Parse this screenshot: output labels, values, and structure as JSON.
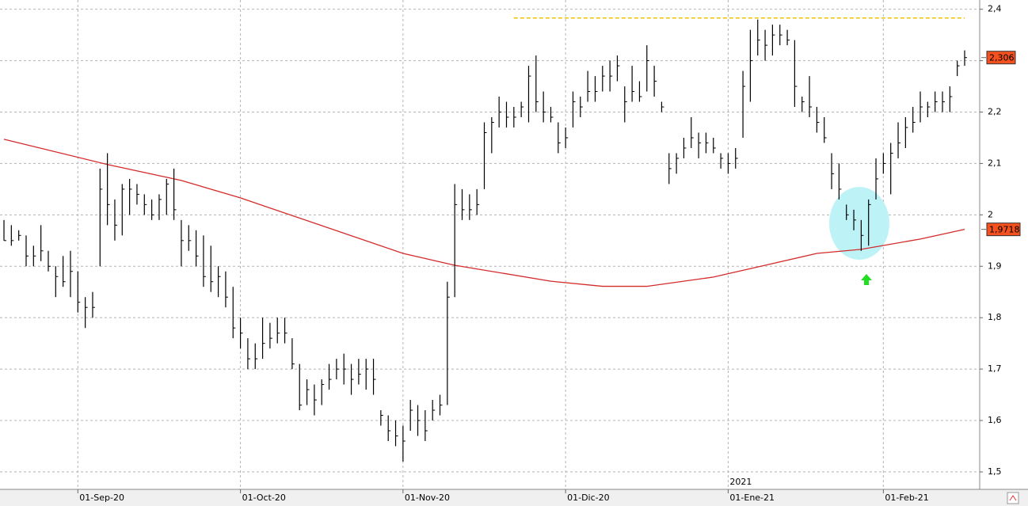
{
  "chart_data": {
    "type": "ohlc",
    "categories": [
      null,
      null,
      null,
      null,
      null,
      null,
      null,
      null,
      null,
      null,
      "01-Sep-20",
      null,
      null,
      null,
      null,
      null,
      null,
      null,
      null,
      null,
      null,
      null,
      null,
      null,
      null,
      null,
      null,
      null,
      null,
      null,
      null,
      null,
      "01-Oct-20",
      null,
      null,
      null,
      null,
      null,
      null,
      null,
      null,
      null,
      null,
      null,
      null,
      null,
      null,
      null,
      null,
      null,
      null,
      null,
      null,
      null,
      "01-Nov-20",
      null,
      null,
      null,
      null,
      null,
      null,
      null,
      null,
      null,
      null,
      null,
      null,
      null,
      null,
      null,
      null,
      null,
      null,
      null,
      null,
      null,
      "01-Dic-20",
      null,
      null,
      null,
      null,
      null,
      null,
      null,
      null,
      null,
      null,
      null,
      null,
      null,
      null,
      null,
      null,
      null,
      null,
      null,
      null,
      null,
      "01-Ene-21",
      null,
      null,
      null,
      null,
      null,
      null,
      null,
      null,
      null,
      null,
      null,
      null,
      null,
      null,
      null,
      null,
      null,
      null,
      null,
      null,
      "01-Feb-21",
      null,
      null,
      null,
      null,
      null,
      null,
      null,
      null,
      null,
      null,
      null
    ],
    "year_label": "2021",
    "high": [
      1.99,
      1.98,
      1.97,
      1.96,
      1.94,
      1.98,
      1.93,
      1.9,
      1.92,
      1.93,
      1.89,
      1.84,
      1.85,
      2.09,
      2.12,
      2.03,
      2.06,
      2.07,
      2.06,
      2.04,
      2.03,
      2.04,
      2.07,
      2.09,
      1.99,
      1.98,
      1.97,
      1.96,
      1.94,
      1.9,
      1.89,
      1.86,
      1.8,
      1.76,
      1.75,
      1.8,
      1.79,
      1.8,
      1.8,
      1.76,
      1.71,
      1.68,
      1.67,
      1.68,
      1.71,
      1.72,
      1.73,
      1.71,
      1.72,
      1.72,
      1.72,
      1.62,
      1.61,
      1.6,
      1.59,
      1.64,
      1.63,
      1.62,
      1.64,
      1.65,
      1.87,
      2.06,
      2.05,
      2.04,
      2.05,
      2.18,
      2.19,
      2.23,
      2.22,
      2.21,
      2.22,
      2.29,
      2.31,
      2.24,
      2.21,
      2.18,
      2.17,
      2.24,
      2.23,
      2.28,
      2.27,
      2.29,
      2.3,
      2.31,
      2.25,
      2.29,
      2.26,
      2.33,
      2.29,
      2.22,
      2.12,
      2.12,
      2.15,
      2.19,
      2.16,
      2.16,
      2.15,
      2.12,
      2.12,
      2.13,
      2.28,
      2.36,
      2.38,
      2.36,
      2.37,
      2.37,
      2.36,
      2.34,
      2.23,
      2.27,
      2.21,
      2.19,
      2.12,
      2.1,
      2.02,
      2.01,
      1.99,
      2.03,
      2.11,
      2.12,
      2.14,
      2.18,
      2.19,
      2.21,
      2.24,
      2.22,
      2.24,
      2.24,
      2.25,
      2.3,
      2.32
    ],
    "low": [
      1.95,
      1.94,
      1.95,
      1.9,
      1.9,
      1.91,
      1.89,
      1.84,
      1.86,
      1.84,
      1.81,
      1.78,
      1.8,
      1.9,
      1.98,
      1.95,
      1.96,
      2.0,
      2.02,
      2.0,
      1.99,
      1.99,
      2.0,
      1.99,
      1.9,
      1.93,
      1.9,
      1.86,
      1.85,
      1.84,
      1.82,
      1.76,
      1.74,
      1.7,
      1.7,
      1.72,
      1.74,
      1.75,
      1.75,
      1.7,
      1.62,
      1.63,
      1.61,
      1.63,
      1.66,
      1.68,
      1.67,
      1.65,
      1.67,
      1.66,
      1.65,
      1.59,
      1.56,
      1.55,
      1.52,
      1.58,
      1.57,
      1.56,
      1.6,
      1.61,
      1.63,
      1.84,
      1.99,
      1.99,
      2.0,
      2.05,
      2.12,
      2.17,
      2.17,
      2.17,
      2.19,
      2.18,
      2.2,
      2.18,
      2.18,
      2.12,
      2.13,
      2.17,
      2.19,
      2.22,
      2.22,
      2.24,
      2.24,
      2.26,
      2.18,
      2.22,
      2.22,
      2.24,
      2.23,
      2.2,
      2.06,
      2.08,
      2.11,
      2.13,
      2.11,
      2.12,
      2.12,
      2.09,
      2.08,
      2.09,
      2.15,
      2.22,
      2.31,
      2.3,
      2.31,
      2.33,
      2.33,
      2.21,
      2.2,
      2.19,
      2.16,
      2.14,
      2.05,
      2.03,
      1.99,
      1.97,
      1.93,
      1.94,
      2.03,
      2.08,
      2.04,
      2.11,
      2.13,
      2.16,
      2.18,
      2.19,
      2.2,
      2.2,
      2.2,
      2.27,
      2.29
    ],
    "close": [
      1.95,
      1.95,
      1.96,
      1.92,
      1.92,
      1.93,
      1.9,
      1.88,
      1.87,
      1.89,
      1.83,
      1.82,
      1.82,
      2.05,
      2.02,
      1.98,
      2.05,
      2.05,
      2.04,
      2.02,
      2.0,
      2.03,
      2.06,
      2.01,
      1.95,
      1.95,
      1.92,
      1.88,
      1.87,
      1.88,
      1.84,
      1.78,
      1.77,
      1.72,
      1.72,
      1.75,
      1.76,
      1.77,
      1.77,
      1.71,
      1.63,
      1.66,
      1.64,
      1.67,
      1.68,
      1.7,
      1.7,
      1.68,
      1.69,
      1.7,
      1.68,
      1.61,
      1.58,
      1.57,
      1.56,
      1.62,
      1.6,
      1.58,
      1.62,
      1.63,
      1.84,
      2.02,
      2.01,
      2.01,
      2.02,
      2.16,
      2.18,
      2.2,
      2.19,
      2.19,
      2.21,
      2.27,
      2.22,
      2.2,
      2.19,
      2.14,
      2.15,
      2.22,
      2.21,
      2.24,
      2.24,
      2.27,
      2.27,
      2.29,
      2.22,
      2.24,
      2.23,
      2.3,
      2.26,
      2.21,
      2.09,
      2.11,
      2.13,
      2.15,
      2.14,
      2.14,
      2.13,
      2.11,
      2.1,
      2.11,
      2.25,
      2.3,
      2.34,
      2.33,
      2.35,
      2.35,
      2.34,
      2.25,
      2.22,
      2.21,
      2.18,
      2.15,
      2.08,
      2.05,
      2.0,
      1.99,
      1.96,
      2.02,
      2.07,
      2.1,
      2.12,
      2.14,
      2.17,
      2.18,
      2.21,
      2.21,
      2.22,
      2.22,
      2.23,
      2.29,
      2.306
    ],
    "color": "#000000",
    "moving_average": {
      "color": "#d42a2a",
      "x": [
        0,
        14,
        24,
        32,
        42,
        54,
        61,
        74,
        81,
        87,
        96,
        103,
        110,
        116,
        124,
        130
      ],
      "values": [
        2.147,
        2.098,
        2.067,
        2.033,
        1.984,
        1.925,
        1.902,
        1.871,
        1.861,
        1.861,
        1.879,
        1.902,
        1.925,
        1.933,
        1.953,
        1.9718
      ]
    },
    "resistance": {
      "color": "#f0c000",
      "x": [
        69,
        130
      ],
      "value": 2.383
    },
    "last_price": {
      "value": 2.306,
      "label": "2,306",
      "color": "#f4511e"
    },
    "ma_last": {
      "value": 1.9718,
      "label": "1,9718",
      "color": "#f4511e"
    },
    "ylim": [
      1.466,
      2.418
    ],
    "yticks": [
      {
        "value": 1.5,
        "label": "1,5"
      },
      {
        "value": 1.6,
        "label": "1,6"
      },
      {
        "value": 1.7,
        "label": "1,7"
      },
      {
        "value": 1.8,
        "label": "1,8"
      },
      {
        "value": 1.9,
        "label": "1,9"
      },
      2,
      {
        "value": 2.1,
        "label": "2,1"
      },
      {
        "value": 2.2,
        "label": "2,2"
      },
      {
        "value": 2.3,
        "label": "2,3"
      },
      {
        "value": 2.4,
        "label": "2,4"
      }
    ],
    "grid": true
  }
}
